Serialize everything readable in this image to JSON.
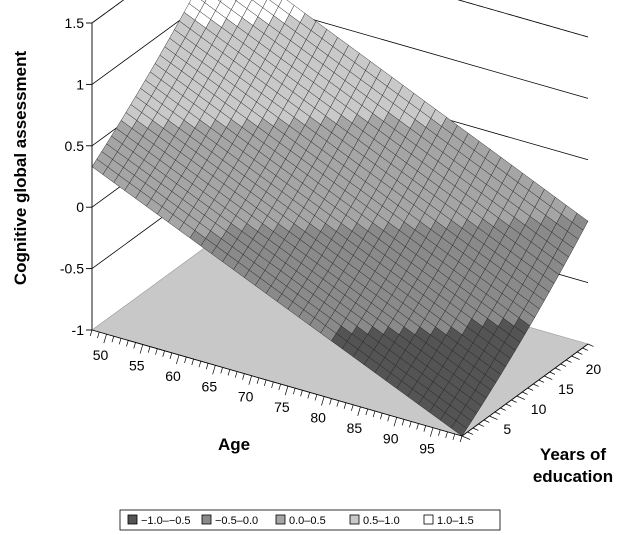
{
  "chart_data": {
    "type": "surface",
    "title": "",
    "zlabel": "Cognitive global assessment",
    "xlabel": "Age",
    "ylabel_line1": "Years of",
    "ylabel_line2": "education",
    "z_ticks": [
      "1.5",
      "1",
      "0.5",
      "0",
      "-0.5",
      "-1"
    ],
    "z_range": [
      -1,
      1.5
    ],
    "age_ticks": [
      "50",
      "55",
      "60",
      "65",
      "70",
      "75",
      "80",
      "85",
      "90",
      "95"
    ],
    "age_range": [
      48,
      99
    ],
    "education_ticks": [
      "5",
      "10",
      "15",
      "20"
    ],
    "education_range": [
      0,
      23
    ],
    "surface_corners": {
      "age_48_edu_0": 0.33,
      "age_48_edu_23": 1.35,
      "age_99_edu_0": -1.0,
      "age_99_edu_23": 0.0
    },
    "legend_position": "bottom",
    "legend": [
      {
        "label": "−1.0–−0.5",
        "color": "#545454"
      },
      {
        "label": "−0.5–0.0",
        "color": "#8a8a8a"
      },
      {
        "label": "0.0–0.5",
        "color": "#a5a5a5"
      },
      {
        "label": "0.5–1.0",
        "color": "#c9c9c9"
      },
      {
        "label": "1.0–1.5",
        "color": "#ffffff"
      }
    ]
  }
}
